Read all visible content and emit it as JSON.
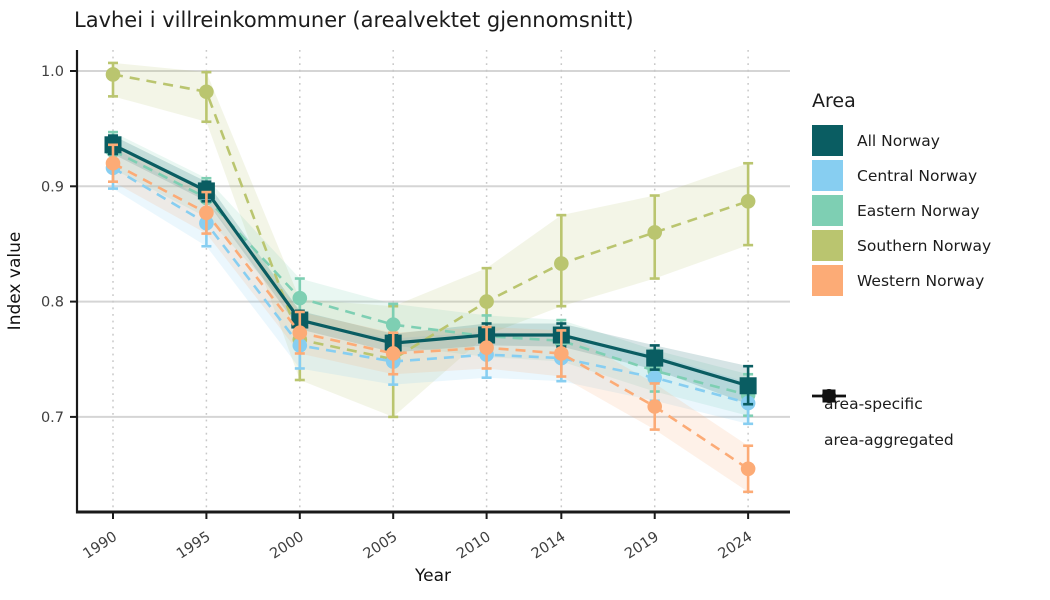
{
  "title": "Lavhei i villreinkommuner (arealvektet gjennomsnitt)",
  "axes": {
    "x_label": "Year",
    "y_label": "Index value",
    "x_ticks": [
      "1990",
      "1995",
      "2000",
      "2005",
      "2010",
      "2014",
      "2019",
      "2024"
    ],
    "y_ticks": [
      "0.7",
      "0.8",
      "0.9",
      "1.0"
    ]
  },
  "legend": {
    "area_title": "Area",
    "items": [
      {
        "label": "All Norway",
        "color": "#0a5d62"
      },
      {
        "label": "Central Norway",
        "color": "#87cef1"
      },
      {
        "label": "Eastern Norway",
        "color": "#7ecfb3"
      },
      {
        "label": "Southern Norway",
        "color": "#bac56f"
      },
      {
        "label": "Western Norway",
        "color": "#fcab76"
      }
    ],
    "shape_items": [
      {
        "label": "area-specific",
        "shape": "circle"
      },
      {
        "label": "area-aggregated",
        "shape": "square"
      }
    ]
  },
  "chart_data": {
    "type": "line",
    "title": "Lavhei i villreinkommuner (arealvektet gjennomsnitt)",
    "xlabel": "Year",
    "ylabel": "Index value",
    "x": [
      1990,
      1995,
      2000,
      2005,
      2010,
      2014,
      2019,
      2024
    ],
    "y_ticks": [
      0.7,
      0.8,
      0.9,
      1.0
    ],
    "ylim": [
      0.615,
      1.02
    ],
    "grid": {
      "horizontal": "solid",
      "vertical": "dotted"
    },
    "legend_position": "right",
    "series": [
      {
        "name": "All Norway",
        "color": "#0a5d62",
        "marker": "square",
        "line_style": "solid",
        "values": [
          0.936,
          0.896,
          0.784,
          0.764,
          0.771,
          0.771,
          0.751,
          0.727
        ],
        "ci_low": [
          0.928,
          0.887,
          0.776,
          0.756,
          0.762,
          0.761,
          0.741,
          0.711
        ],
        "ci_high": [
          0.944,
          0.904,
          0.792,
          0.772,
          0.781,
          0.781,
          0.762,
          0.744
        ]
      },
      {
        "name": "Central Norway",
        "color": "#87cef1",
        "marker": "circle",
        "line_style": "dashed",
        "values": [
          0.916,
          0.868,
          0.762,
          0.748,
          0.754,
          0.751,
          0.734,
          0.712
        ],
        "ci_low": [
          0.898,
          0.848,
          0.742,
          0.728,
          0.734,
          0.731,
          0.714,
          0.694
        ],
        "ci_high": [
          0.934,
          0.888,
          0.782,
          0.768,
          0.774,
          0.771,
          0.754,
          0.73
        ]
      },
      {
        "name": "Eastern Norway",
        "color": "#7ecfb3",
        "marker": "circle",
        "line_style": "dashed",
        "values": [
          0.931,
          0.89,
          0.803,
          0.78,
          0.77,
          0.766,
          0.74,
          0.719
        ],
        "ci_low": [
          0.915,
          0.873,
          0.786,
          0.762,
          0.752,
          0.748,
          0.722,
          0.701
        ],
        "ci_high": [
          0.947,
          0.907,
          0.82,
          0.798,
          0.788,
          0.784,
          0.758,
          0.737
        ]
      },
      {
        "name": "Southern Norway",
        "color": "#bac56f",
        "marker": "circle",
        "line_style": "dashed",
        "values": [
          0.997,
          0.982,
          0.767,
          0.75,
          0.8,
          0.833,
          0.86,
          0.887
        ],
        "ci_low": [
          0.978,
          0.956,
          0.732,
          0.7,
          0.771,
          0.796,
          0.82,
          0.849
        ],
        "ci_high": [
          1.007,
          0.999,
          0.802,
          0.796,
          0.829,
          0.875,
          0.892,
          0.92
        ]
      },
      {
        "name": "Western Norway",
        "color": "#fcab76",
        "marker": "circle",
        "line_style": "dashed",
        "values": [
          0.92,
          0.877,
          0.773,
          0.755,
          0.76,
          0.755,
          0.709,
          0.655
        ],
        "ci_low": [
          0.904,
          0.859,
          0.755,
          0.737,
          0.742,
          0.735,
          0.689,
          0.635
        ],
        "ci_high": [
          0.936,
          0.895,
          0.791,
          0.773,
          0.778,
          0.775,
          0.729,
          0.675
        ]
      }
    ],
    "draw_order": [
      "Southern Norway",
      "Eastern Norway",
      "Central Norway",
      "All Norway",
      "Western Norway"
    ]
  }
}
